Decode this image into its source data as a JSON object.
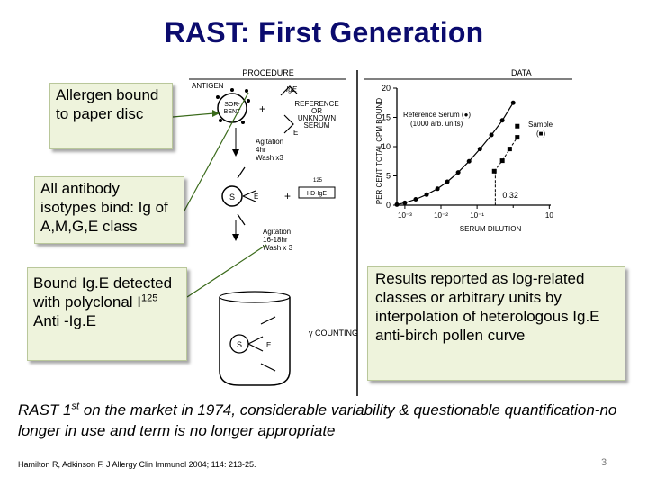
{
  "slide": {
    "title": "RAST: First Generation",
    "page_number": "3",
    "citation": "Hamilton R, Adkinson F. J Allergy Clin Immunol 2004; 114: 213-25."
  },
  "callouts": {
    "allergen": "Allergen bound to paper disc",
    "isotypes": "All antibody isotypes bind: Ig of A,M,G,E class",
    "bound_pre": "Bound Ig.E detected with polyclonal I",
    "bound_sup": "125",
    "bound_post": " Anti -Ig.E",
    "results": "Results reported as log-related classes or arbitrary units by interpolation of heterologous Ig.E anti-birch pollen curve"
  },
  "footer": {
    "pre": "RAST 1",
    "sup": "st",
    "post": " on the market in 1974, considerable variability & questionable quantification-no longer in use and term is no longer appropriate"
  },
  "procedure": {
    "header": "PROCEDURE",
    "antigen": "ANTIGEN",
    "ige": "IgE",
    "sorbent": [
      "SOR-",
      "BENT"
    ],
    "reference": [
      "REFERENCE",
      "OR",
      "UNKNOWN",
      "SERUM"
    ],
    "step1": [
      "Agitation",
      "4hr",
      "Wash x3"
    ],
    "step2": [
      "Agitation",
      "16-18hr",
      "Wash x 3"
    ],
    "s": "S",
    "e": "E",
    "plus": "+",
    "ige_label": "IgE",
    "i125": "125",
    "anti_ige": "I-D-IgE",
    "counting": "γ COUNTING"
  },
  "chart_data": {
    "type": "line",
    "header": "DATA",
    "ylabel": "PER CENT TOTAL CPM BOUND",
    "xlabel": "SERUM DILUTION",
    "yticks": [
      "0",
      "5",
      "10",
      "15",
      "20"
    ],
    "xticks": [
      "10⁻³",
      "10⁻²",
      "10⁻¹",
      "10"
    ],
    "ylim": [
      0,
      20
    ],
    "x_scale": "log",
    "legend": [
      {
        "name": "Reference Serum (●)",
        "sub": "(1000 arb. units)"
      },
      {
        "name": "Sample",
        "sub": "(■)"
      }
    ],
    "annotation": "0.32",
    "series": [
      {
        "name": "Reference Serum",
        "marker": "circle",
        "x": [
          0.0006,
          0.001,
          0.002,
          0.004,
          0.008,
          0.015,
          0.03,
          0.06,
          0.12,
          0.25,
          0.5,
          1.0
        ],
        "y": [
          0.1,
          0.4,
          1.0,
          1.8,
          2.8,
          4.0,
          5.6,
          7.5,
          9.6,
          12.0,
          14.5,
          17.5
        ]
      },
      {
        "name": "Sample",
        "marker": "square",
        "x": [
          0.3,
          0.5,
          0.8,
          1.3
        ],
        "y": [
          5.8,
          7.6,
          9.6,
          11.6
        ]
      }
    ],
    "interpolation": {
      "y": 5.8,
      "x": 0.32
    }
  }
}
